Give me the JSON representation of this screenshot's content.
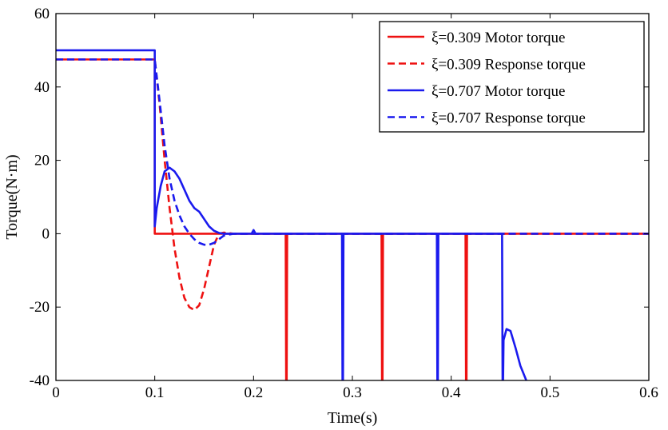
{
  "chart_data": {
    "type": "line",
    "xlabel": "Time(s)",
    "ylabel": "Torque(N·m)",
    "xlim": [
      0,
      0.6
    ],
    "ylim": [
      -40,
      60
    ],
    "xticks": [
      0,
      0.1,
      0.2,
      0.3,
      0.4,
      0.5,
      0.6
    ],
    "xtick_labels": [
      "0",
      "0.1",
      "0.2",
      "0.3",
      "0.4",
      "0.5",
      "0.6"
    ],
    "yticks": [
      -40,
      -20,
      0,
      20,
      40,
      60
    ],
    "ytick_labels": [
      "-40",
      "-20",
      "0",
      "20",
      "40",
      "60"
    ],
    "grid": false,
    "legend_position": "top-right",
    "colors": {
      "red": "#ee1111",
      "blue": "#1a1aee"
    },
    "series": [
      {
        "name": "ξ=0.309 Motor torque",
        "color": "#ee1111",
        "dash": "solid",
        "x": [
          0,
          0.1,
          0.1,
          0.2325,
          0.233,
          0.2335,
          0.234,
          0.3295,
          0.33,
          0.3305,
          0.331,
          0.4145,
          0.415,
          0.4155,
          0.416,
          0.6
        ],
        "y": [
          47.5,
          47.5,
          0,
          0,
          -40,
          -40,
          0,
          0,
          -40,
          -40,
          0,
          0,
          -40,
          -40,
          0,
          0
        ]
      },
      {
        "name": "ξ=0.309 Response torque",
        "color": "#ee1111",
        "dash": "dashed",
        "x": [
          0,
          0.1,
          0.105,
          0.11,
          0.115,
          0.12,
          0.125,
          0.13,
          0.135,
          0.14,
          0.145,
          0.15,
          0.155,
          0.16,
          0.165,
          0.17,
          0.18,
          0.6
        ],
        "y": [
          47.5,
          47.5,
          35,
          20,
          7,
          -4,
          -12,
          -17.5,
          -20,
          -20.8,
          -19.5,
          -15,
          -9,
          -3,
          0,
          0.3,
          0,
          0
        ]
      },
      {
        "name": "ξ=0.707 Motor torque",
        "color": "#1a1aee",
        "dash": "solid",
        "x": [
          0,
          0.1,
          0.1,
          0.102,
          0.106,
          0.11,
          0.115,
          0.12,
          0.125,
          0.13,
          0.135,
          0.14,
          0.145,
          0.15,
          0.155,
          0.16,
          0.165,
          0.17,
          0.18,
          0.198,
          0.2,
          0.202,
          0.21,
          0.2895,
          0.29,
          0.2905,
          0.291,
          0.3855,
          0.386,
          0.3865,
          0.387,
          0.4515,
          0.452,
          0.4525,
          0.453,
          0.456,
          0.46,
          0.465,
          0.47,
          0.476
        ],
        "y": [
          50,
          50,
          2,
          7,
          13,
          17,
          18,
          17,
          15,
          12,
          9,
          7,
          6,
          4,
          2,
          0.8,
          0.2,
          0,
          0,
          0,
          1,
          0,
          0,
          0,
          -40,
          -40,
          0,
          0,
          -40,
          -40,
          0,
          0,
          -40,
          -40,
          -29,
          -26,
          -26.5,
          -31,
          -36,
          -40
        ]
      },
      {
        "name": "ξ=0.707 Response torque",
        "color": "#1a1aee",
        "dash": "dashed",
        "x": [
          0,
          0.1,
          0.105,
          0.11,
          0.115,
          0.12,
          0.125,
          0.13,
          0.135,
          0.14,
          0.145,
          0.15,
          0.155,
          0.16,
          0.165,
          0.17,
          0.18,
          0.6
        ],
        "y": [
          47.5,
          47.5,
          36,
          24,
          15,
          9,
          5,
          2,
          0,
          -1.5,
          -2.5,
          -3,
          -3,
          -2.5,
          -1.5,
          -0.5,
          0,
          0
        ]
      }
    ]
  }
}
